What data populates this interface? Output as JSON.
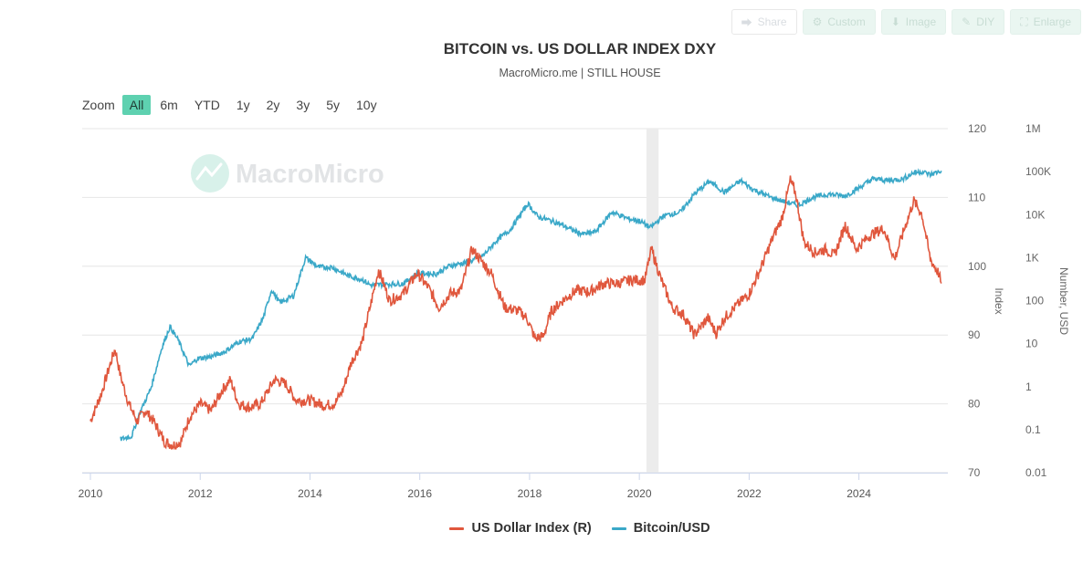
{
  "toolbar": {
    "share_label": "Share",
    "custom_label": "Custom",
    "image_label": "Image",
    "diy_label": "DIY",
    "enlarge_label": "Enlarge"
  },
  "zoom": {
    "label": "Zoom",
    "options": [
      "All",
      "6m",
      "YTD",
      "1y",
      "2y",
      "3y",
      "5y",
      "10y"
    ],
    "active": "All"
  },
  "watermark": "MacroMicro",
  "chart_data": {
    "type": "line",
    "title": "BITCOIN vs. US DOLLAR INDEX DXY",
    "subtitle": "MacroMicro.me | STILL HOUSE",
    "x_ticks": [
      "2010",
      "2012",
      "2014",
      "2016",
      "2018",
      "2020",
      "2022",
      "2024"
    ],
    "xlim": [
      "2009-11",
      "2025-07"
    ],
    "y_left": {
      "label": "Index",
      "range": [
        70,
        120
      ],
      "ticks": [
        "70",
        "80",
        "90",
        "100",
        "110",
        "120"
      ]
    },
    "y_right": {
      "label": "Number, USD",
      "scale": "log",
      "range": [
        0.01,
        1000000
      ],
      "ticks": [
        "0.01",
        "0.1",
        "1",
        "10",
        "100",
        "1K",
        "10K",
        "100K",
        "1M"
      ]
    },
    "shaded_band": {
      "from": 2020.13,
      "to": 2020.35
    },
    "colors": {
      "dxy": "#e0573d",
      "btc": "#3aa8c8",
      "band": "#ececec",
      "grid": "#e6e6e6"
    },
    "series": [
      {
        "name": "US Dollar Index (R)",
        "axis": "left",
        "color": "#e0573d",
        "points": [
          [
            2010.0,
            77.5
          ],
          [
            2010.2,
            81.5
          ],
          [
            2010.35,
            85.5
          ],
          [
            2010.45,
            88.0
          ],
          [
            2010.55,
            84.0
          ],
          [
            2010.7,
            80.0
          ],
          [
            2010.85,
            77.5
          ],
          [
            2011.0,
            79.0
          ],
          [
            2011.15,
            77.5
          ],
          [
            2011.35,
            74.5
          ],
          [
            2011.5,
            74.0
          ],
          [
            2011.65,
            74.5
          ],
          [
            2011.8,
            78.0
          ],
          [
            2012.0,
            80.0
          ],
          [
            2012.2,
            79.0
          ],
          [
            2012.4,
            82.0
          ],
          [
            2012.55,
            83.5
          ],
          [
            2012.7,
            80.0
          ],
          [
            2012.9,
            79.5
          ],
          [
            2013.1,
            80.0
          ],
          [
            2013.35,
            83.5
          ],
          [
            2013.55,
            83.0
          ],
          [
            2013.75,
            80.5
          ],
          [
            2014.0,
            80.5
          ],
          [
            2014.25,
            79.8
          ],
          [
            2014.45,
            80.0
          ],
          [
            2014.6,
            82.0
          ],
          [
            2014.75,
            86.0
          ],
          [
            2014.95,
            89.0
          ],
          [
            2015.15,
            96.0
          ],
          [
            2015.25,
            99.5
          ],
          [
            2015.45,
            95.0
          ],
          [
            2015.7,
            96.0
          ],
          [
            2015.95,
            99.0
          ],
          [
            2016.15,
            97.0
          ],
          [
            2016.35,
            94.0
          ],
          [
            2016.55,
            96.0
          ],
          [
            2016.75,
            96.5
          ],
          [
            2016.95,
            102.5
          ],
          [
            2017.1,
            101.0
          ],
          [
            2017.3,
            99.0
          ],
          [
            2017.55,
            94.0
          ],
          [
            2017.8,
            93.5
          ],
          [
            2017.95,
            92.5
          ],
          [
            2018.1,
            89.5
          ],
          [
            2018.25,
            89.8
          ],
          [
            2018.4,
            93.5
          ],
          [
            2018.6,
            95.0
          ],
          [
            2018.85,
            96.5
          ],
          [
            2019.1,
            96.3
          ],
          [
            2019.35,
            97.5
          ],
          [
            2019.6,
            97.5
          ],
          [
            2019.85,
            98.0
          ],
          [
            2020.1,
            98.0
          ],
          [
            2020.22,
            102.5
          ],
          [
            2020.4,
            98.0
          ],
          [
            2020.6,
            94.0
          ],
          [
            2020.8,
            93.0
          ],
          [
            2021.0,
            90.0
          ],
          [
            2021.25,
            92.5
          ],
          [
            2021.4,
            90.2
          ],
          [
            2021.55,
            92.5
          ],
          [
            2021.8,
            94.5
          ],
          [
            2022.0,
            96.0
          ],
          [
            2022.2,
            99.5
          ],
          [
            2022.45,
            104.5
          ],
          [
            2022.6,
            107.0
          ],
          [
            2022.75,
            112.5
          ],
          [
            2022.85,
            110.5
          ],
          [
            2023.0,
            103.5
          ],
          [
            2023.2,
            102.0
          ],
          [
            2023.4,
            102.5
          ],
          [
            2023.55,
            101.5
          ],
          [
            2023.75,
            106.0
          ],
          [
            2023.95,
            102.5
          ],
          [
            2024.2,
            104.5
          ],
          [
            2024.45,
            105.5
          ],
          [
            2024.65,
            101.0
          ],
          [
            2024.85,
            106.0
          ],
          [
            2025.0,
            109.5
          ],
          [
            2025.15,
            107.5
          ],
          [
            2025.3,
            101.0
          ],
          [
            2025.45,
            99.0
          ],
          [
            2025.5,
            97.5
          ]
        ]
      },
      {
        "name": "Bitcoin/USD",
        "axis": "right",
        "color": "#3aa8c8",
        "points": [
          [
            2010.55,
            0.06
          ],
          [
            2010.75,
            0.07
          ],
          [
            2010.9,
            0.25
          ],
          [
            2011.1,
            0.9
          ],
          [
            2011.3,
            8.0
          ],
          [
            2011.45,
            25.0
          ],
          [
            2011.6,
            12.0
          ],
          [
            2011.8,
            3.0
          ],
          [
            2011.95,
            4.5
          ],
          [
            2012.2,
            5.0
          ],
          [
            2012.45,
            6.5
          ],
          [
            2012.7,
            11.0
          ],
          [
            2012.95,
            13.0
          ],
          [
            2013.15,
            40.0
          ],
          [
            2013.3,
            180.0
          ],
          [
            2013.45,
            90.0
          ],
          [
            2013.7,
            130.0
          ],
          [
            2013.92,
            1000.0
          ],
          [
            2014.15,
            600.0
          ],
          [
            2014.4,
            600.0
          ],
          [
            2014.7,
            380.0
          ],
          [
            2014.95,
            310.0
          ],
          [
            2015.1,
            230.0
          ],
          [
            2015.4,
            240.0
          ],
          [
            2015.7,
            250.0
          ],
          [
            2015.95,
            430.0
          ],
          [
            2016.3,
            420.0
          ],
          [
            2016.55,
            650.0
          ],
          [
            2016.9,
            800.0
          ],
          [
            2017.15,
            1100.0
          ],
          [
            2017.4,
            2500.0
          ],
          [
            2017.65,
            4500.0
          ],
          [
            2017.97,
            18000.0
          ],
          [
            2018.15,
            9000.0
          ],
          [
            2018.5,
            6500.0
          ],
          [
            2018.85,
            4000.0
          ],
          [
            2018.97,
            3500.0
          ],
          [
            2019.2,
            4000.0
          ],
          [
            2019.5,
            11500.0
          ],
          [
            2019.8,
            8000.0
          ],
          [
            2020.0,
            7200.0
          ],
          [
            2020.2,
            5000.0
          ],
          [
            2020.45,
            9500.0
          ],
          [
            2020.75,
            11500.0
          ],
          [
            2021.0,
            30000.0
          ],
          [
            2021.28,
            60000.0
          ],
          [
            2021.55,
            33000.0
          ],
          [
            2021.85,
            62000.0
          ],
          [
            2022.05,
            40000.0
          ],
          [
            2022.4,
            25000.0
          ],
          [
            2022.65,
            20000.0
          ],
          [
            2022.9,
            16500.0
          ],
          [
            2023.15,
            25000.0
          ],
          [
            2023.45,
            30000.0
          ],
          [
            2023.75,
            27000.0
          ],
          [
            2024.0,
            42000.0
          ],
          [
            2024.25,
            68000.0
          ],
          [
            2024.55,
            62000.0
          ],
          [
            2024.8,
            68000.0
          ],
          [
            2025.0,
            95000.0
          ],
          [
            2025.15,
            100000.0
          ],
          [
            2025.3,
            85000.0
          ],
          [
            2025.5,
            105000.0
          ]
        ]
      }
    ],
    "legend": {
      "position": "bottom-center"
    }
  }
}
